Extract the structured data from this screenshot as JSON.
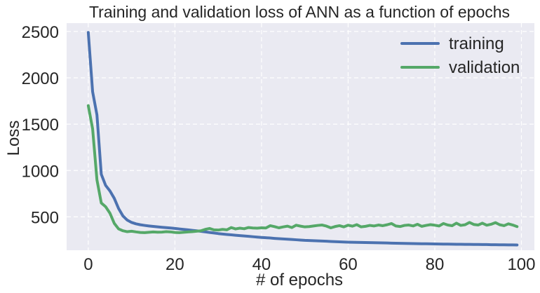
{
  "chart_data": {
    "type": "line",
    "title": "Training and validation loss of ANN as a function of epochs",
    "xlabel": "# of epochs",
    "ylabel": "Loss",
    "xlim": [
      -5,
      103
    ],
    "ylim": [
      140,
      2590
    ],
    "xticks": [
      0,
      20,
      40,
      60,
      80,
      100
    ],
    "yticks": [
      500,
      1000,
      1500,
      2000,
      2500
    ],
    "grid": true,
    "legend_position": "top-right",
    "background_color": "#EAEAF2",
    "series": [
      {
        "name": "training",
        "color": "#4C72B0",
        "x": [
          0,
          1,
          2,
          3,
          4,
          5,
          6,
          7,
          8,
          9,
          10,
          11,
          12,
          13,
          14,
          15,
          16,
          17,
          18,
          19,
          20,
          21,
          22,
          23,
          24,
          25,
          26,
          27,
          28,
          29,
          30,
          31,
          32,
          33,
          34,
          35,
          36,
          37,
          38,
          39,
          40,
          41,
          42,
          43,
          44,
          45,
          46,
          47,
          48,
          49,
          50,
          51,
          52,
          53,
          54,
          55,
          56,
          57,
          58,
          59,
          60,
          61,
          62,
          63,
          64,
          65,
          66,
          67,
          68,
          69,
          70,
          71,
          72,
          73,
          74,
          75,
          76,
          77,
          78,
          79,
          80,
          81,
          82,
          83,
          84,
          85,
          86,
          87,
          88,
          89,
          90,
          91,
          92,
          93,
          94,
          95,
          96,
          97,
          98,
          99
        ],
        "values": [
          2490,
          1850,
          1600,
          960,
          840,
          780,
          700,
          590,
          510,
          465,
          440,
          425,
          415,
          408,
          402,
          397,
          392,
          388,
          384,
          380,
          375,
          370,
          365,
          360,
          355,
          350,
          344,
          338,
          332,
          326,
          320,
          315,
          310,
          306,
          302,
          298,
          294,
          290,
          286,
          282,
          278,
          275,
          272,
          268,
          265,
          262,
          259,
          256,
          253,
          250,
          247,
          245,
          243,
          241,
          239,
          237,
          235,
          233,
          231,
          229,
          227,
          226,
          225,
          224,
          223,
          222,
          221,
          220,
          219,
          218,
          217,
          216,
          215,
          214,
          213,
          212,
          211,
          210,
          210,
          209,
          208,
          207,
          206,
          206,
          205,
          204,
          204,
          203,
          203,
          202,
          202,
          201,
          201,
          200,
          200,
          199,
          199,
          198,
          198,
          197
        ]
      },
      {
        "name": "validation",
        "color": "#55A868",
        "x": [
          0,
          1,
          2,
          3,
          4,
          5,
          6,
          7,
          8,
          9,
          10,
          11,
          12,
          13,
          14,
          15,
          16,
          17,
          18,
          19,
          20,
          21,
          22,
          23,
          24,
          25,
          26,
          27,
          28,
          29,
          30,
          31,
          32,
          33,
          34,
          35,
          36,
          37,
          38,
          39,
          40,
          41,
          42,
          43,
          44,
          45,
          46,
          47,
          48,
          49,
          50,
          51,
          52,
          53,
          54,
          55,
          56,
          57,
          58,
          59,
          60,
          61,
          62,
          63,
          64,
          65,
          66,
          67,
          68,
          69,
          70,
          71,
          72,
          73,
          74,
          75,
          76,
          77,
          78,
          79,
          80,
          81,
          82,
          83,
          84,
          85,
          86,
          87,
          88,
          89,
          90,
          91,
          92,
          93,
          94,
          95,
          96,
          97,
          98,
          99
        ],
        "values": [
          1700,
          1450,
          900,
          650,
          610,
          540,
          430,
          370,
          350,
          340,
          345,
          338,
          332,
          330,
          334,
          338,
          335,
          336,
          340,
          338,
          332,
          330,
          334,
          338,
          340,
          345,
          350,
          365,
          375,
          360,
          358,
          365,
          360,
          385,
          370,
          378,
          372,
          385,
          380,
          378,
          382,
          380,
          405,
          395,
          382,
          392,
          400,
          385,
          410,
          400,
          392,
          395,
          402,
          408,
          412,
          400,
          382,
          396,
          405,
          392,
          410,
          400,
          416,
          392,
          398,
          408,
          402,
          412,
          405,
          415,
          428,
          402,
          396,
          408,
          412,
          402,
          420,
          398,
          408,
          416,
          410,
          402,
          428,
          412,
          405,
          432,
          408,
          415,
          440,
          418,
          412,
          432,
          410,
          420,
          438,
          415,
          405,
          425,
          412,
          395
        ]
      }
    ]
  }
}
